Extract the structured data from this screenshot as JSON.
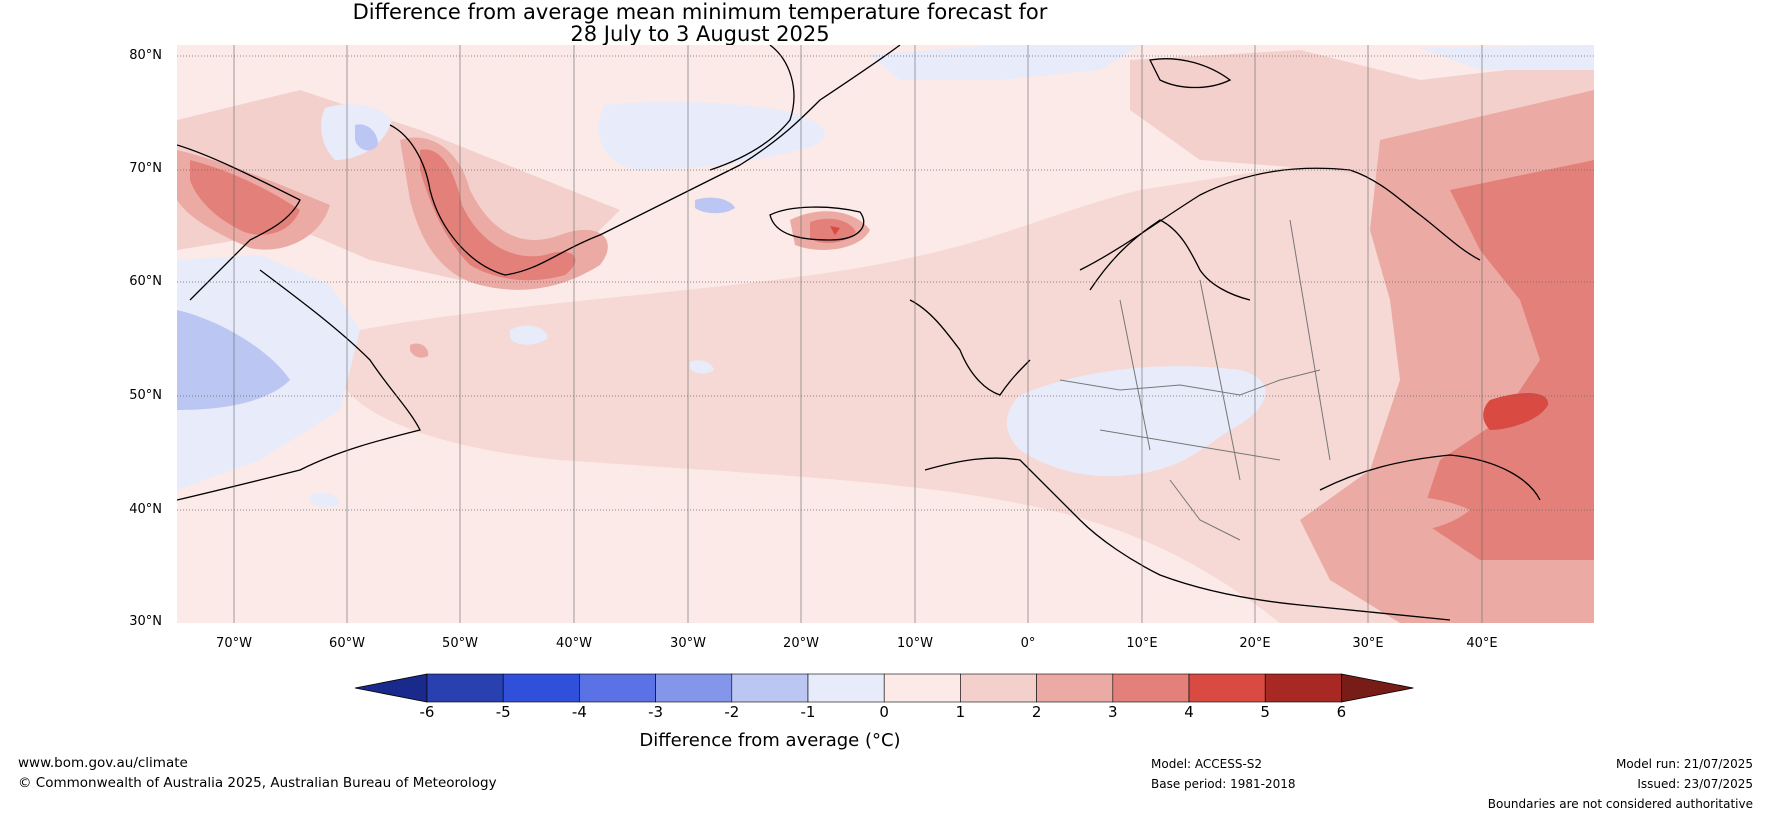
{
  "title": {
    "line1": "Difference from average mean minimum temperature forecast for",
    "line2": "28 July to 3 August 2025"
  },
  "map": {
    "lat_labels": [
      "80°N",
      "70°N",
      "60°N",
      "50°N",
      "40°N",
      "30°N"
    ],
    "lon_labels": [
      "70°W",
      "60°W",
      "50°W",
      "40°W",
      "30°W",
      "20°W",
      "10°W",
      "0°",
      "10°E",
      "20°E",
      "30°E",
      "40°E"
    ]
  },
  "colorbar": {
    "label": "Difference from average (°C)",
    "ticks": [
      "-6",
      "-5",
      "-4",
      "-3",
      "-2",
      "-1",
      "0",
      "1",
      "2",
      "3",
      "4",
      "5",
      "6"
    ],
    "colors": [
      "#1a2a8c",
      "#2840b0",
      "#3050dc",
      "#5a72e6",
      "#8496ea",
      "#bcc6f2",
      "#e8ebfa",
      "#fbeae8",
      "#f4d0cc",
      "#ecaaa4",
      "#e4807a",
      "#d84a42",
      "#a82824",
      "#781c18"
    ]
  },
  "footer": {
    "website": "www.bom.gov.au/climate",
    "copyright": "© Commonwealth of Australia 2025, Australian Bureau of Meteorology",
    "model": "Model: ACCESS-S2",
    "base_period": "Base period: 1981-2018",
    "model_run": "Model run: 21/07/2025",
    "issued": "Issued: 23/07/2025",
    "disclaimer": "Boundaries are not considered authoritative"
  }
}
